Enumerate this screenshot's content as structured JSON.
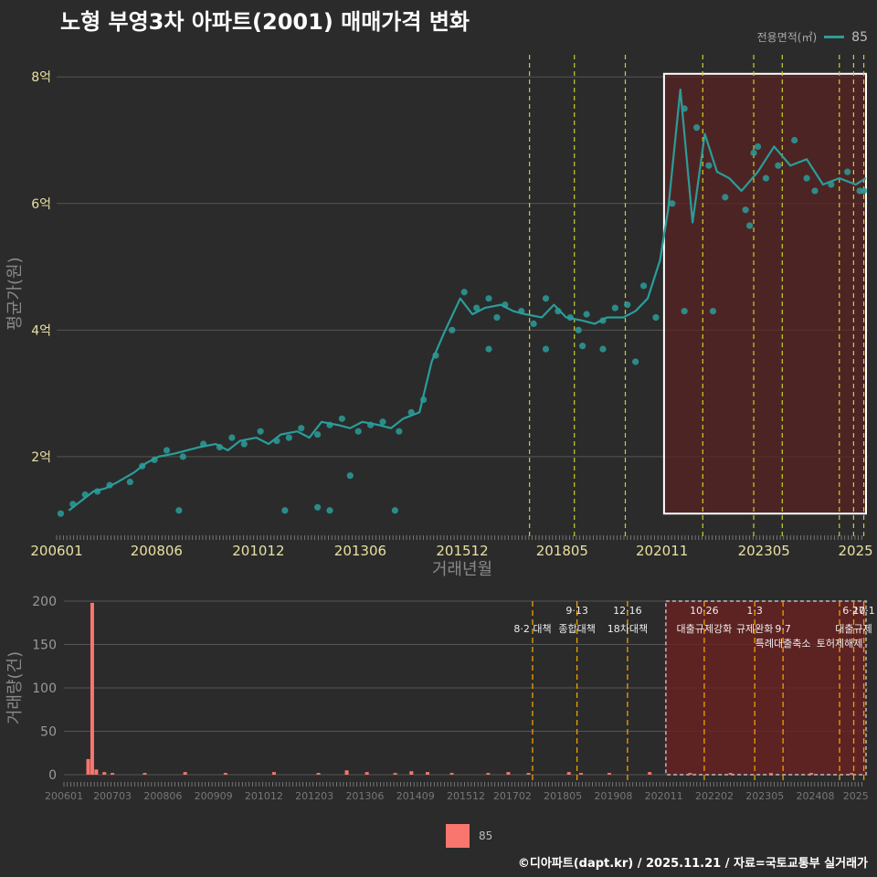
{
  "title": "노형 부영3차 아파트(2001) 매매가격 변화",
  "legend_top": {
    "label": "전용면적(㎡)",
    "value": "85"
  },
  "legend_bottom": {
    "value": "85"
  },
  "footer": "©디아파트(dapt.kr) / 2025.11.21 / 자료=국토교통부 실거래가",
  "colors": {
    "line": "#2a9d9a",
    "bar": "#f8766d",
    "policy_top": "#c9d12c",
    "policy_bottom": "#f0a000",
    "highlight_fill": "#5a2323"
  },
  "chart_data": [
    {
      "type": "line",
      "title": "노형 부영3차 아파트(2001) 매매가격 변화",
      "xlabel": "거래년월",
      "ylabel": "평균가(원)",
      "x_tick_labels": [
        "200601",
        "200806",
        "201012",
        "201306",
        "201512",
        "201805",
        "202011",
        "202305",
        "2025"
      ],
      "y_tick_labels": [
        "2억",
        "4억",
        "6억",
        "8억"
      ],
      "y_tick_values": [
        2,
        4,
        6,
        8
      ],
      "ylim": [
        0.8,
        8.35
      ],
      "xlim": [
        2006.0,
        2025.9
      ],
      "units": "억원",
      "series": [
        {
          "name": "85",
          "x": [
            2006.3,
            2006.6,
            2006.9,
            2007.2,
            2007.5,
            2007.9,
            2008.2,
            2008.5,
            2008.9,
            2009.2,
            2009.5,
            2009.9,
            2010.2,
            2010.5,
            2010.9,
            2011.2,
            2011.5,
            2011.9,
            2012.2,
            2012.5,
            2012.9,
            2013.2,
            2013.5,
            2013.9,
            2014.2,
            2014.5,
            2014.9,
            2015.2,
            2015.5,
            2015.9,
            2016.2,
            2016.5,
            2016.9,
            2017.2,
            2017.5,
            2017.9,
            2018.2,
            2018.5,
            2018.9,
            2019.2,
            2019.5,
            2019.9,
            2020.2,
            2020.5,
            2020.8,
            2021.0,
            2021.3,
            2021.6,
            2021.9,
            2022.2,
            2022.5,
            2022.8,
            2023.2,
            2023.6,
            2024.0,
            2024.4,
            2024.8,
            2025.2,
            2025.6,
            2025.85
          ],
          "y": [
            1.15,
            1.3,
            1.45,
            1.5,
            1.6,
            1.75,
            1.9,
            2.0,
            2.05,
            2.1,
            2.15,
            2.2,
            2.1,
            2.25,
            2.3,
            2.2,
            2.35,
            2.4,
            2.3,
            2.55,
            2.5,
            2.45,
            2.55,
            2.5,
            2.45,
            2.6,
            2.7,
            3.5,
            3.95,
            4.5,
            4.25,
            4.35,
            4.4,
            4.3,
            4.25,
            4.2,
            4.4,
            4.2,
            4.15,
            4.1,
            4.2,
            4.2,
            4.3,
            4.5,
            5.1,
            5.9,
            7.8,
            5.7,
            7.1,
            6.5,
            6.4,
            6.2,
            6.5,
            6.9,
            6.6,
            6.7,
            6.3,
            6.4,
            6.3,
            6.4
          ],
          "scatter_x": [
            2006.1,
            2006.4,
            2006.7,
            2007.0,
            2007.3,
            2007.8,
            2008.1,
            2008.4,
            2008.7,
            2009.1,
            2009.6,
            2010.0,
            2010.3,
            2010.6,
            2011.0,
            2011.4,
            2011.7,
            2012.0,
            2012.4,
            2012.7,
            2013.0,
            2013.4,
            2013.7,
            2014.0,
            2014.4,
            2014.7,
            2015.0,
            2015.3,
            2015.7,
            2016.0,
            2016.3,
            2016.6,
            2016.8,
            2017.0,
            2017.4,
            2017.7,
            2018.0,
            2018.3,
            2018.6,
            2018.8,
            2019.0,
            2019.4,
            2019.7,
            2020.0,
            2020.4,
            2020.7,
            2021.1,
            2021.4,
            2021.7,
            2022.0,
            2022.4,
            2022.9,
            2023.1,
            2023.4,
            2023.7,
            2024.1,
            2024.6,
            2025.0,
            2025.4,
            2025.8,
            2009.0,
            2011.6,
            2012.4,
            2012.7,
            2013.2,
            2014.3,
            2016.6,
            2018.0,
            2018.9,
            2019.4,
            2020.2,
            2021.4,
            2022.1,
            2023.0,
            2023.2,
            2024.4,
            2025.7
          ],
          "scatter_y": [
            1.1,
            1.25,
            1.4,
            1.45,
            1.55,
            1.6,
            1.85,
            1.95,
            2.1,
            2.0,
            2.2,
            2.15,
            2.3,
            2.2,
            2.4,
            2.25,
            2.3,
            2.45,
            2.35,
            2.5,
            2.6,
            2.4,
            2.5,
            2.55,
            2.4,
            2.7,
            2.9,
            3.6,
            4.0,
            4.6,
            4.35,
            4.5,
            4.2,
            4.4,
            4.3,
            4.1,
            4.5,
            4.3,
            4.2,
            4.0,
            4.25,
            4.15,
            4.35,
            4.4,
            4.7,
            4.2,
            6.0,
            7.5,
            7.2,
            6.6,
            6.1,
            5.9,
            6.8,
            6.4,
            6.6,
            7.0,
            6.2,
            6.3,
            6.5,
            6.2,
            1.15,
            1.15,
            1.2,
            1.15,
            1.7,
            1.15,
            3.7,
            3.7,
            3.75,
            3.7,
            3.5,
            4.3,
            4.3,
            5.65,
            6.9,
            6.4,
            6.2
          ]
        }
      ],
      "policy_lines": [
        2017.6,
        2018.7,
        2019.95,
        2021.85,
        2023.1,
        2023.8,
        2025.2,
        2025.55,
        2025.8
      ],
      "highlight_range": [
        2020.9,
        2025.9
      ]
    },
    {
      "type": "bar",
      "ylabel": "거래량(건)",
      "x_tick_labels": [
        "200601",
        "200703",
        "200806",
        "200909",
        "201012",
        "201203",
        "201306",
        "201409",
        "201512",
        "201702",
        "201805",
        "201908",
        "202011",
        "202202",
        "202305",
        "202408",
        "2025"
      ],
      "y_tick_labels": [
        "0",
        "50",
        "100",
        "150",
        "200"
      ],
      "y_tick_values": [
        0,
        50,
        100,
        150,
        200
      ],
      "ylim": [
        0,
        200
      ],
      "xlim": [
        2006.0,
        2025.9
      ],
      "series": [
        {
          "name": "85",
          "x": [
            2006.6,
            2006.7,
            2006.8,
            2007.0,
            2007.2,
            2008.0,
            2009.0,
            2010.0,
            2011.2,
            2012.3,
            2013.0,
            2013.5,
            2014.2,
            2014.6,
            2015.0,
            2015.6,
            2016.5,
            2017.0,
            2017.5,
            2018.5,
            2018.8,
            2019.5,
            2020.5,
            2021.5,
            2022.5,
            2023.5,
            2024.5,
            2025.5
          ],
          "values": [
            18,
            198,
            6,
            3,
            2,
            2,
            3,
            2,
            3,
            2,
            5,
            3,
            2,
            4,
            3,
            2,
            2,
            3,
            2,
            3,
            2,
            2,
            3,
            2,
            2,
            2,
            2,
            2
          ]
        }
      ],
      "policy_lines": [
        2017.6,
        2018.7,
        2019.95,
        2021.85,
        2023.1,
        2023.8,
        2025.2,
        2025.55,
        2025.8
      ],
      "highlight_range": [
        2020.9,
        2025.9
      ],
      "annotations": [
        {
          "x": 2017.6,
          "row": 1,
          "text": "8·2 대책"
        },
        {
          "x": 2018.7,
          "row": 0,
          "text": "9·13"
        },
        {
          "x": 2018.7,
          "row": 1,
          "text": "종합대책"
        },
        {
          "x": 2019.95,
          "row": 0,
          "text": "12·16"
        },
        {
          "x": 2019.95,
          "row": 1,
          "text": "18차대책"
        },
        {
          "x": 2021.85,
          "row": 0,
          "text": "10·26"
        },
        {
          "x": 2021.85,
          "row": 1,
          "text": "대출규제강화"
        },
        {
          "x": 2023.1,
          "row": 0,
          "text": "1·3"
        },
        {
          "x": 2023.1,
          "row": 1,
          "text": "규제완화"
        },
        {
          "x": 2023.8,
          "row": 1,
          "text": "9·7"
        },
        {
          "x": 2023.8,
          "row": 2,
          "text": "특례대출축소"
        },
        {
          "x": 2025.2,
          "row": 2,
          "text": "토허제해제"
        },
        {
          "x": 2025.55,
          "row": 0,
          "text": "6·27"
        },
        {
          "x": 2025.55,
          "row": 1,
          "text": "대출규제"
        },
        {
          "x": 2025.8,
          "row": 0,
          "text": "10·1"
        }
      ]
    }
  ]
}
